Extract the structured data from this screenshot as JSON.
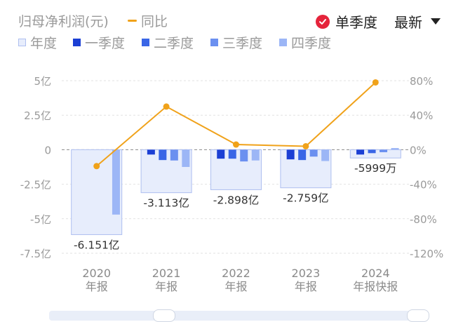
{
  "legend": {
    "metric_label": "归母净利润(元)",
    "yoy_label": "同比",
    "annual_label": "年度",
    "q1_label": "一季度",
    "q2_label": "二季度",
    "q3_label": "三季度",
    "q4_label": "四季度"
  },
  "controls": {
    "single_quarter_label": "单季度",
    "latest_label": "最新"
  },
  "colors": {
    "annual_fill": "#e7edfc",
    "annual_border": "#aebff0",
    "q1": "#1b3fd4",
    "q2": "#3a66e6",
    "q3": "#6b90f0",
    "q4": "#9cb6f6",
    "yoy_line": "#f0a21a",
    "check": "#e5243b"
  },
  "chart_data": {
    "type": "bar",
    "categories": [
      "2020",
      "2021",
      "2022",
      "2023",
      "2024"
    ],
    "category_sublabels": [
      "年报",
      "年报",
      "年报",
      "年报",
      "年报快报"
    ],
    "annual": [
      -6.151,
      -3.113,
      -2.898,
      -2.759,
      -0.5999
    ],
    "annual_labels": [
      "-6.151亿",
      "-3.113亿",
      "-2.898亿",
      "-2.759亿",
      "-5999万"
    ],
    "quarters": [
      [
        null,
        null,
        null,
        -4.7
      ],
      [
        -0.35,
        -0.75,
        -0.78,
        -1.25
      ],
      [
        -0.65,
        -0.65,
        -0.85,
        -0.78
      ],
      [
        -0.7,
        -0.75,
        -0.5,
        -0.82
      ],
      [
        -0.35,
        -0.25,
        -0.18,
        0.12
      ]
    ],
    "yoy": [
      -19,
      50,
      6,
      4,
      78
    ],
    "y_left": {
      "ticks": [
        5,
        2.5,
        0,
        -2.5,
        -5,
        -7.5
      ],
      "tick_labels": [
        "5亿",
        "2.5亿",
        "0",
        "-2.5亿",
        "-5亿",
        "-7.5亿"
      ],
      "range": [
        -7.5,
        5
      ]
    },
    "y_right": {
      "ticks": [
        80,
        40,
        0,
        -40,
        -80,
        -120
      ],
      "tick_labels": [
        "80%",
        "40%",
        "0%",
        "-40%",
        "-80%",
        "-120%"
      ],
      "range": [
        -120,
        80
      ]
    },
    "grid": true,
    "legend_position": "top-left"
  }
}
